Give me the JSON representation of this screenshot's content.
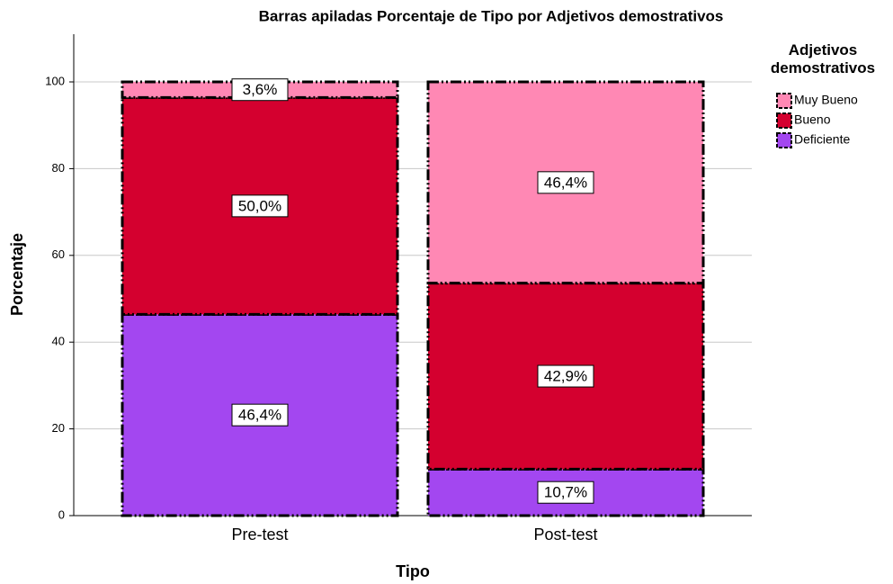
{
  "chart_data": {
    "type": "stacked_bar",
    "title": "Barras apiladas Porcentaje de Tipo por Adjetivos demostrativos",
    "x_label": "Tipo",
    "y_label": "Porcentaje",
    "categories": [
      "Pre-test",
      "Post-test"
    ],
    "legend_title": "Adjetivos demostrativos",
    "legend_position": "right",
    "series": [
      {
        "name": "Deficiente",
        "color": "#a347f0",
        "values": [
          46.4,
          10.7
        ],
        "value_labels": [
          "46,4%",
          "10,7%"
        ]
      },
      {
        "name": "Bueno",
        "color": "#d4002f",
        "values": [
          50.0,
          42.9
        ],
        "value_labels": [
          "50,0%",
          "42,9%"
        ]
      },
      {
        "name": "Muy Bueno",
        "color": "#ff88b4",
        "values": [
          3.6,
          46.4
        ],
        "value_labels": [
          "3,6%",
          "46,4%"
        ]
      }
    ],
    "ylim": [
      0,
      111
    ],
    "yticks": [
      0,
      20,
      40,
      60,
      80,
      100
    ],
    "grid": true
  }
}
